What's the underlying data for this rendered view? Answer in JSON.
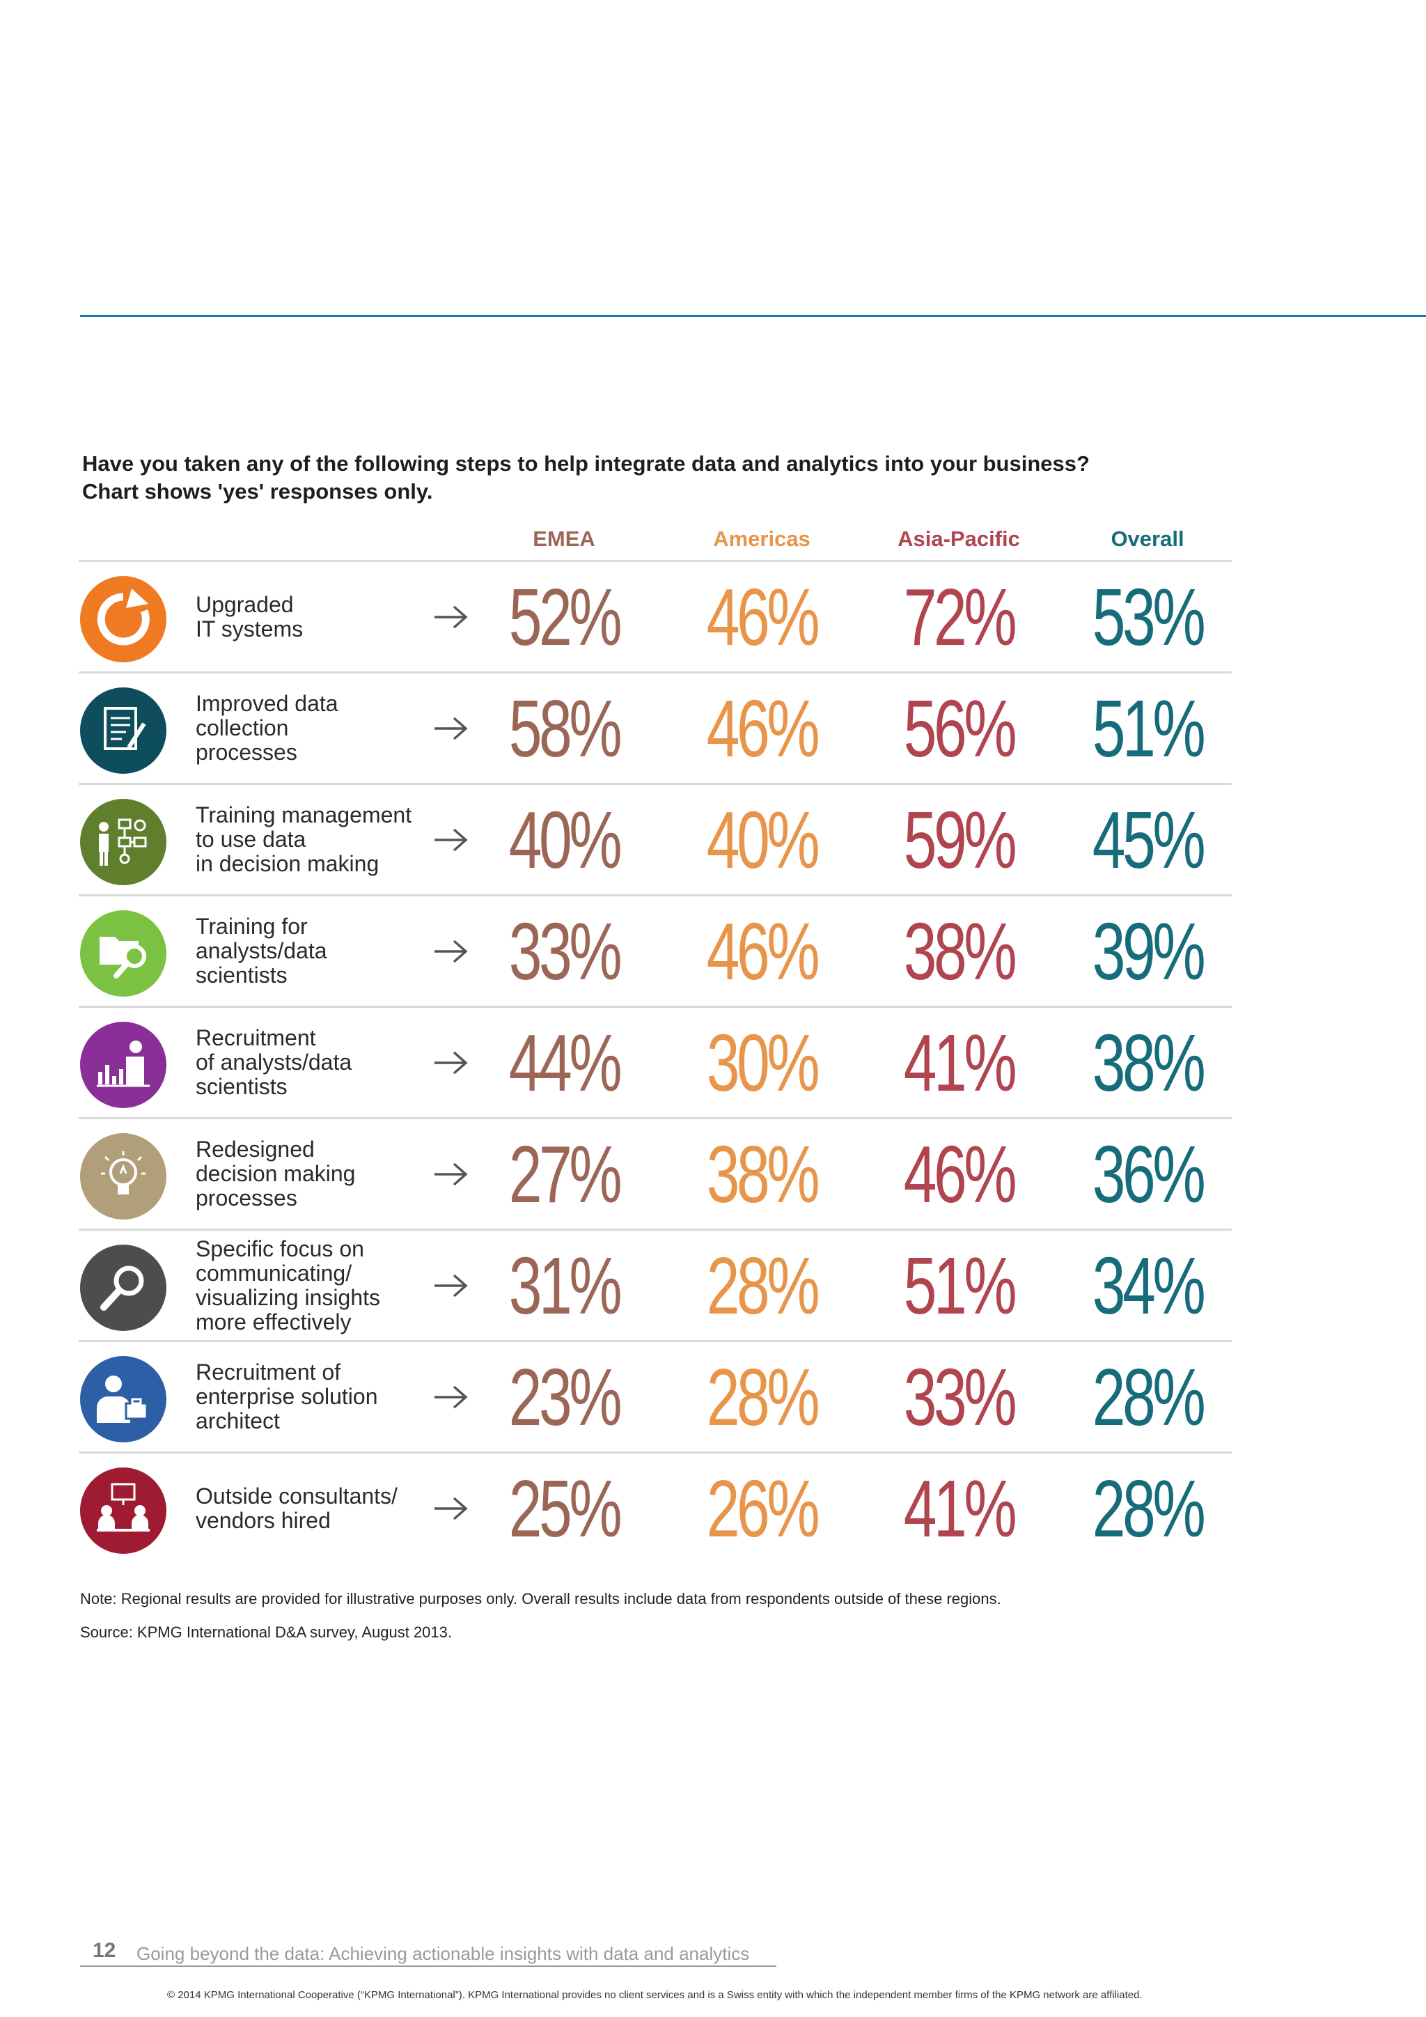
{
  "question": {
    "line1": "Have you taken any of the following steps to help integrate data and analytics into your business?",
    "line2": "Chart shows 'yes' responses only."
  },
  "columns": [
    "EMEA",
    "Americas",
    "Asia-Pacific",
    "Overall"
  ],
  "colors": {
    "emea": "#9b6655",
    "americas": "#e8944a",
    "asia_pacific": "#b0444f",
    "overall": "#166c7a"
  },
  "rows": [
    {
      "label": "Upgraded\nIT systems",
      "icon": "refresh-icon",
      "icon_color": "#f07a21",
      "emea": "52%",
      "americas": "46%",
      "asia_pacific": "72%",
      "overall": "53%"
    },
    {
      "label": "Improved data\ncollection\nprocesses",
      "icon": "document-pen-icon",
      "icon_color": "#0d4d5c",
      "emea": "58%",
      "americas": "46%",
      "asia_pacific": "56%",
      "overall": "51%"
    },
    {
      "label": "Training management\nto use data\nin decision making",
      "icon": "presenter-flowchart-icon",
      "icon_color": "#5f7f2d",
      "emea": "40%",
      "americas": "40%",
      "asia_pacific": "59%",
      "overall": "45%"
    },
    {
      "label": "Training for\nanalysts/data\nscientists",
      "icon": "folder-search-icon",
      "icon_color": "#7cc242",
      "emea": "33%",
      "americas": "46%",
      "asia_pacific": "38%",
      "overall": "39%"
    },
    {
      "label": "Recruitment\nof analysts/data\nscientists",
      "icon": "analyst-chart-icon",
      "icon_color": "#8a2f97",
      "emea": "44%",
      "americas": "30%",
      "asia_pacific": "41%",
      "overall": "38%"
    },
    {
      "label": "Redesigned\ndecision making\nprocesses",
      "icon": "lightbulb-icon",
      "icon_color": "#b09f79",
      "emea": "27%",
      "americas": "38%",
      "asia_pacific": "46%",
      "overall": "36%"
    },
    {
      "label": "Specific focus on\ncommunicating/\nvisualizing insights\nmore effectively",
      "icon": "magnifier-icon",
      "icon_color": "#4d4d4f",
      "emea": "31%",
      "americas": "28%",
      "asia_pacific": "51%",
      "overall": "34%"
    },
    {
      "label": "Recruitment of\nenterprise solution\narchitect",
      "icon": "person-briefcase-icon",
      "icon_color": "#2d5fa6",
      "emea": "23%",
      "americas": "28%",
      "asia_pacific": "33%",
      "overall": "28%"
    },
    {
      "label": "Outside consultants/\nvendors hired",
      "icon": "consultants-meeting-icon",
      "icon_color": "#9e1b32",
      "emea": "25%",
      "americas": "26%",
      "asia_pacific": "41%",
      "overall": "28%"
    }
  ],
  "notes": {
    "note": "Note: Regional results are provided for illustrative purposes only. Overall results include data from respondents outside of these regions.",
    "source": "Source: KPMG International D&A survey, August 2013."
  },
  "footer": {
    "page_number": "12",
    "running_title": "Going beyond the data: Achieving actionable insights with data and analytics",
    "copyright": "© 2014 KPMG International Cooperative (“KPMG International”). KPMG International provides no client services and is a Swiss entity with which the independent member firms of the KPMG network are affiliated."
  }
}
